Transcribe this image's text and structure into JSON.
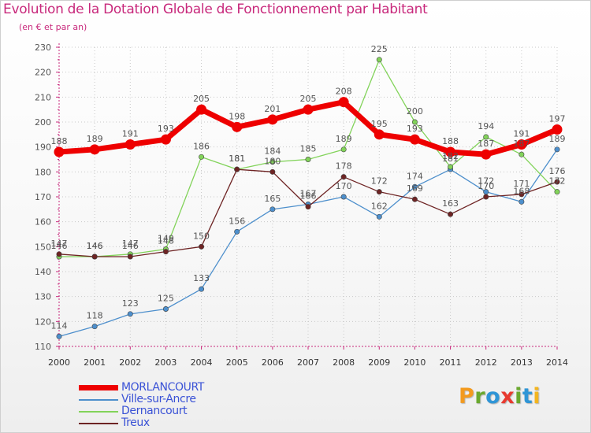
{
  "title": "Evolution de la Dotation Globale de Fonctionnement par Habitant",
  "subtitle": "(en € et par an)",
  "chart_data": {
    "type": "line",
    "x": [
      2000,
      2001,
      2002,
      2003,
      2004,
      2005,
      2006,
      2007,
      2008,
      2009,
      2010,
      2011,
      2012,
      2013,
      2014
    ],
    "ylim": [
      110,
      230
    ],
    "yticks": [
      110,
      120,
      130,
      140,
      150,
      160,
      170,
      180,
      190,
      200,
      210,
      220,
      230
    ],
    "grid": "horizontal dotted",
    "legend_position": "bottom-left",
    "series": [
      {
        "name": "MORLANCOURT",
        "color": "#ee0000",
        "values": [
          188,
          189,
          191,
          193,
          205,
          198,
          201,
          205,
          208,
          195,
          193,
          188,
          187,
          191,
          197
        ]
      },
      {
        "name": "Ville-sur-Ancre",
        "color": "#4d8fcc",
        "values": [
          114,
          118,
          123,
          125,
          133,
          156,
          165,
          167,
          170,
          162,
          174,
          181,
          172,
          168,
          189
        ]
      },
      {
        "name": "Dernancourt",
        "color": "#82d35a",
        "values": [
          146,
          146,
          147,
          149,
          186,
          181,
          184,
          185,
          189,
          225,
          200,
          182,
          194,
          187,
          172
        ]
      },
      {
        "name": "Treux",
        "color": "#6e2424",
        "values": [
          147,
          146,
          146,
          148,
          150,
          181,
          180,
          166,
          178,
          172,
          169,
          163,
          170,
          171,
          176
        ]
      }
    ],
    "data_labels": [
      [
        188,
        189,
        191,
        193,
        205,
        198,
        201,
        205,
        208,
        195,
        193,
        188,
        187,
        191,
        197
      ],
      [
        114,
        118,
        123,
        125,
        133,
        156,
        165,
        167,
        170,
        162,
        174,
        181,
        172,
        168,
        189
      ],
      [
        146,
        146,
        147,
        149,
        186,
        181,
        184,
        185,
        189,
        225,
        200,
        182,
        194,
        187,
        172
      ],
      [
        147,
        146,
        146,
        148,
        150,
        181,
        180,
        166,
        178,
        172,
        169,
        163,
        170,
        171,
        176
      ]
    ]
  },
  "logo": {
    "letters": [
      {
        "ch": "P",
        "color": "#f39a1e"
      },
      {
        "ch": "r",
        "color": "#6aa82e"
      },
      {
        "ch": "o",
        "color": "#2f95d6"
      },
      {
        "ch": "x",
        "color": "#e83a2f"
      },
      {
        "ch": "i",
        "color": "#6aa82e"
      },
      {
        "ch": "t",
        "color": "#2f95d6"
      },
      {
        "ch": "i",
        "color": "#f3b51e"
      }
    ]
  }
}
